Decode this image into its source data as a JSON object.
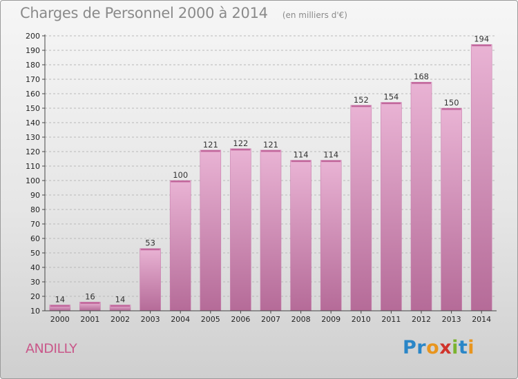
{
  "header": {
    "title": "Charges de Personnel 2000 à 2014",
    "subtitle": "(en milliers d'€)"
  },
  "footer": {
    "place": "ANDILLY",
    "logo_letters": [
      "P",
      "r",
      "o",
      "x",
      "i",
      "t",
      "i"
    ],
    "logo_colors": [
      "#2a86c7",
      "#2a86c7",
      "#e8951e",
      "#d0342c",
      "#7bb32e",
      "#2a86c7",
      "#e8951e"
    ]
  },
  "colors": {
    "bar_top": "#e9b3d4",
    "bar_bottom": "#b56b98",
    "bar_edge": "#c97fae",
    "axis": "#444444",
    "grid": "#b8b8b8"
  },
  "chart_data": {
    "type": "bar",
    "title": "Charges de Personnel 2000 à 2014",
    "subtitle": "(en milliers d'€)",
    "categories": [
      "2000",
      "2001",
      "2002",
      "2003",
      "2004",
      "2005",
      "2006",
      "2007",
      "2008",
      "2009",
      "2010",
      "2011",
      "2012",
      "2013",
      "2014"
    ],
    "values": [
      14,
      16,
      14,
      53,
      100,
      121,
      122,
      121,
      114,
      114,
      152,
      154,
      168,
      150,
      194
    ],
    "ylim": [
      10,
      200
    ],
    "yticks": [
      10,
      20,
      30,
      40,
      50,
      60,
      70,
      80,
      90,
      100,
      110,
      120,
      130,
      140,
      150,
      160,
      170,
      180,
      190,
      200
    ],
    "grid": "horizontal dashed",
    "legend": "none"
  }
}
